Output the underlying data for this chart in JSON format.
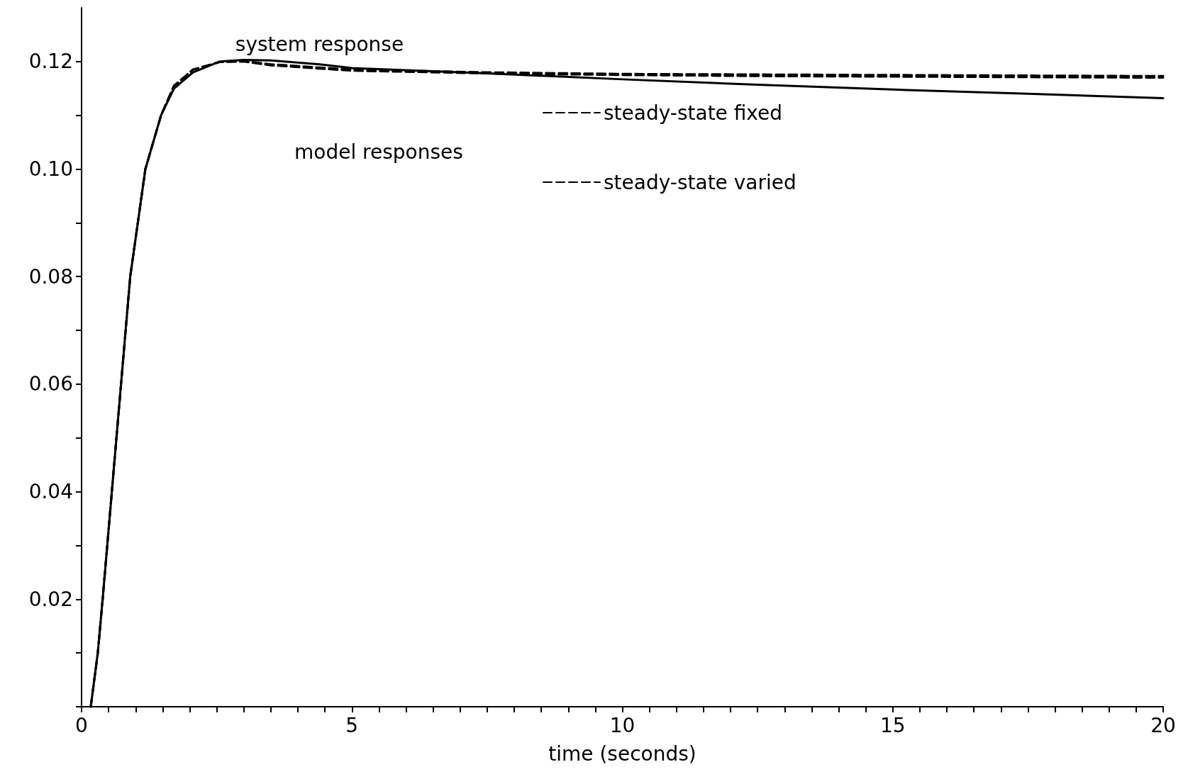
{
  "chart_data": {
    "type": "line",
    "xlabel": "time (seconds)",
    "annotations": [
      "model responses"
    ],
    "xlim": [
      0,
      20
    ],
    "ylim": [
      0,
      0.13
    ],
    "xticks": [
      0,
      {
        "value": 0.5,
        "label": null
      },
      {
        "value": 1,
        "label": null
      },
      {
        "value": 1.5,
        "label": null
      },
      {
        "value": 2,
        "label": null
      },
      {
        "value": 2.5,
        "label": null
      },
      {
        "value": 3,
        "label": null
      },
      {
        "value": 3.5,
        "label": null
      },
      {
        "value": 4,
        "label": null
      },
      {
        "value": 4.5,
        "label": null
      },
      5,
      {
        "value": 5.5,
        "label": null
      },
      {
        "value": 6,
        "label": null
      },
      {
        "value": 6.5,
        "label": null
      },
      {
        "value": 7,
        "label": null
      },
      {
        "value": 7.5,
        "label": null
      },
      {
        "value": 8,
        "label": null
      },
      {
        "value": 8.5,
        "label": null
      },
      {
        "value": 9,
        "label": null
      },
      {
        "value": 9.5,
        "label": null
      },
      10,
      {
        "value": 10.5,
        "label": null
      },
      {
        "value": 11,
        "label": null
      },
      {
        "value": 11.5,
        "label": null
      },
      {
        "value": 12,
        "label": null
      },
      {
        "value": 12.5,
        "label": null
      },
      {
        "value": 13,
        "label": null
      },
      {
        "value": 13.5,
        "label": null
      },
      {
        "value": 14,
        "label": null
      },
      {
        "value": 14.5,
        "label": null
      },
      15,
      {
        "value": 15.5,
        "label": null
      },
      {
        "value": 16,
        "label": null
      },
      {
        "value": 16.5,
        "label": null
      },
      {
        "value": 17,
        "label": null
      },
      {
        "value": 17.5,
        "label": null
      },
      {
        "value": 18,
        "label": null
      },
      {
        "value": 18.5,
        "label": null
      },
      {
        "value": 19,
        "label": null
      },
      {
        "value": 19.5,
        "label": null
      },
      20
    ],
    "yticks": [
      {
        "value": 0,
        "label": null
      },
      {
        "value": 0.01,
        "label": null
      },
      0.02,
      {
        "value": 0.03,
        "label": null
      },
      0.04,
      {
        "value": 0.05,
        "label": null
      },
      0.06,
      {
        "value": 0.07,
        "label": null
      },
      0.08,
      {
        "value": 0.09,
        "label": null
      },
      {
        "value": 0.1,
        "label": "0.10"
      },
      {
        "value": 0.11,
        "label": null
      },
      0.12
    ],
    "grid": false,
    "legend": "top",
    "marker": "none",
    "series": [
      {
        "name": "system response",
        "color": "#000000",
        "line_style": "solid",
        "x": [
          0.17,
          0.3,
          0.39,
          0.56,
          0.73,
          0.9,
          1.18,
          1.47,
          1.71,
          2.06,
          2.55,
          3.0,
          3.5,
          4.4,
          5,
          7.5,
          10,
          12.5,
          15,
          17.5,
          20
        ],
        "values": [
          0,
          0.01,
          0.02,
          0.04,
          0.06,
          0.08,
          0.1,
          0.11,
          0.115,
          0.118,
          0.12,
          0.1203,
          0.1202,
          0.1195,
          0.1188,
          0.1178,
          0.1167,
          0.1157,
          0.1148,
          0.114,
          0.1132
        ]
      },
      {
        "name": "steady-state fixed",
        "color": "#000000",
        "line_style": "dashed",
        "x": [
          0.17,
          0.3,
          0.39,
          0.56,
          0.73,
          0.9,
          1.18,
          1.47,
          1.71,
          2.06,
          2.55,
          3.0,
          3.5,
          5,
          7.5,
          10,
          12.5,
          15,
          17.5,
          20
        ],
        "values": [
          0,
          0.01,
          0.02,
          0.04,
          0.06,
          0.08,
          0.1,
          0.11,
          0.1155,
          0.1185,
          0.1199,
          0.1201,
          0.1195,
          0.1185,
          0.118,
          0.1177,
          0.1176,
          0.1175,
          0.1174,
          0.1173
        ]
      },
      {
        "name": "steady-state varied",
        "color": "#000000",
        "line_style": "dashed",
        "x": [
          0.17,
          0.3,
          0.39,
          0.56,
          0.73,
          0.9,
          1.18,
          1.47,
          1.71,
          2.06,
          2.55,
          3.0,
          3.5,
          5,
          7.5,
          10,
          12.5,
          15,
          17.5,
          20
        ],
        "values": [
          0,
          0.01,
          0.02,
          0.04,
          0.06,
          0.08,
          0.1,
          0.11,
          0.1155,
          0.1185,
          0.1199,
          0.12,
          0.1193,
          0.1183,
          0.1178,
          0.1175,
          0.1173,
          0.1172,
          0.1171,
          0.117
        ]
      }
    ]
  }
}
